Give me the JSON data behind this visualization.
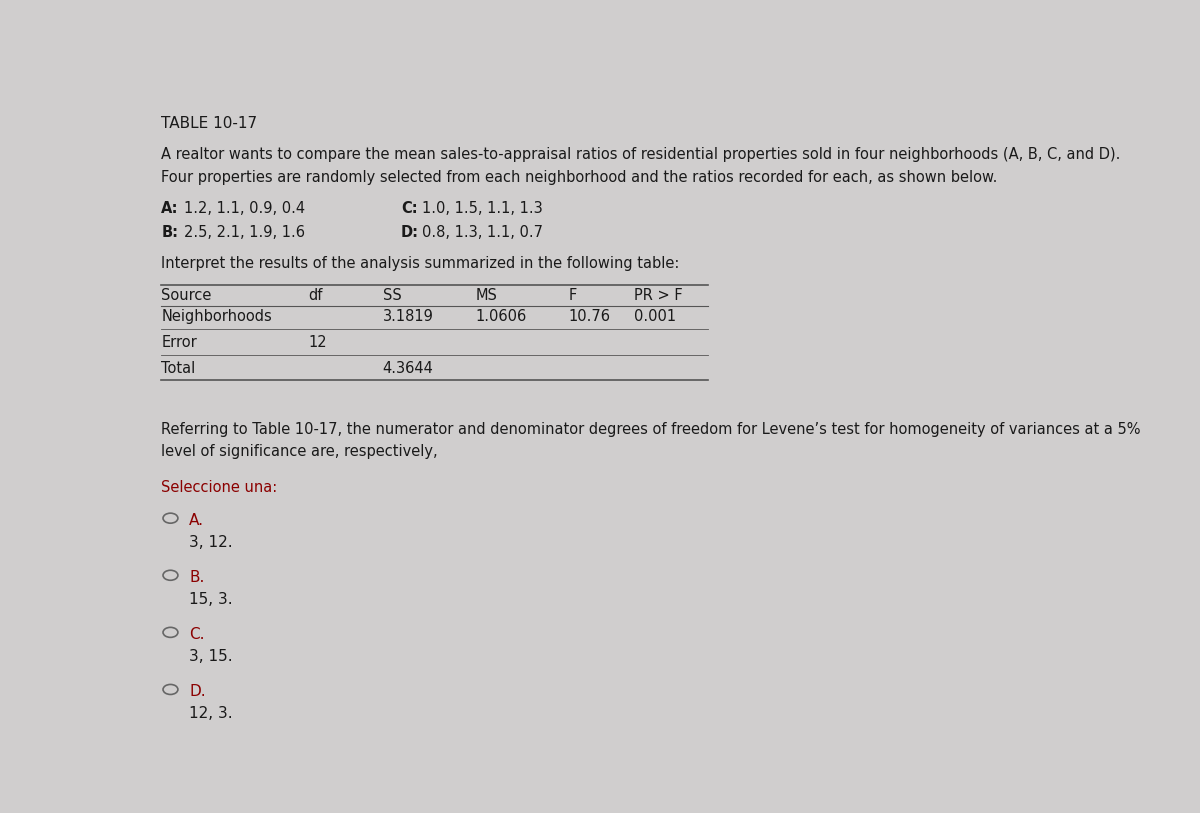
{
  "title": "TABLE 10-17",
  "description_line1": "A realtor wants to compare the mean sales-to-appraisal ratios of residential properties sold in four neighborhoods (A, B, C, and D).",
  "description_line2": "Four properties are randomly selected from each neighborhood and the ratios recorded for each, as shown below.",
  "data_A_label": "A:",
  "data_A_values": "1.2, 1.1, 0.9, 0.4",
  "data_C_label": "C:",
  "data_C_values": "1.0, 1.5, 1.1, 1.3",
  "data_B_label": "B:",
  "data_B_values": "2.5, 2.1, 1.9, 1.6",
  "data_D_label": "D:",
  "data_D_values": "0.8, 1.3, 1.1, 0.7",
  "table_intro": "Interpret the results of the analysis summarized in the following table:",
  "table_headers": [
    "Source",
    "df",
    "SS",
    "MS",
    "F",
    "PR > F"
  ],
  "table_row1": [
    "Neighborhoods",
    "",
    "3.1819",
    "1.0606",
    "10.76",
    "0.001"
  ],
  "table_row2": [
    "Error",
    "12",
    "",
    "",
    "",
    ""
  ],
  "table_row3": [
    "Total",
    "",
    "4.3644",
    "",
    "",
    ""
  ],
  "question": "Referring to Table 10-17, the numerator and denominator degrees of freedom for Levene’s test for homogeneity of variances at a 5%\nlevel of significance are, respectively,",
  "select_label": "Seleccione una:",
  "option_A_letter": "A.",
  "option_A_text": "3, 12.",
  "option_B_letter": "B.",
  "option_B_text": "15, 3.",
  "option_C_letter": "C.",
  "option_C_text": "3, 15.",
  "option_D_letter": "D.",
  "option_D_text": "12, 3.",
  "bg_color": "#d0cece",
  "text_color": "#1a1a1a",
  "option_letter_color": "#8b0000",
  "select_label_color": "#8b0000",
  "font_size_title": 11,
  "font_size_body": 10.5,
  "font_size_option_letter": 11,
  "font_size_option_text": 11,
  "line_color": "#555555"
}
